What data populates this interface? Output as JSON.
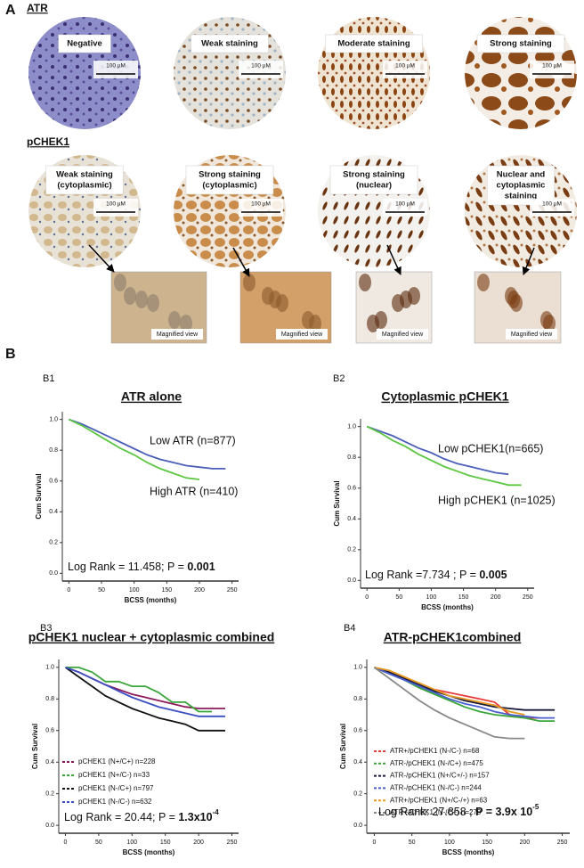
{
  "panel_a": {
    "label": "A",
    "rows": [
      {
        "title": "ATR",
        "images": [
          {
            "label": [
              "Negative"
            ],
            "scale": "100 µM"
          },
          {
            "label": [
              "Weak staining"
            ],
            "scale": "100 µM"
          },
          {
            "label": [
              "Moderate staining"
            ],
            "scale": "100 µM"
          },
          {
            "label": [
              "Strong staining"
            ],
            "scale": "100 µM"
          }
        ]
      },
      {
        "title": "pCHEK1",
        "images": [
          {
            "label": [
              "Weak staining",
              "(cytoplasmic)"
            ],
            "scale": "100 µM"
          },
          {
            "label": [
              "Strong staining",
              "(cytoplasmic)"
            ],
            "scale": "100 µM"
          },
          {
            "label": [
              "Strong staining",
              "(nuclear)"
            ],
            "scale": "100 µM"
          },
          {
            "label": [
              "Nuclear and",
              "cytoplasmic",
              "staining"
            ],
            "scale": "100 µM"
          }
        ]
      }
    ],
    "magnified": [
      "Magnified view",
      "Magnified view",
      "Magnified view",
      "Magnified view"
    ]
  },
  "panel_b": {
    "label": "B"
  },
  "chart_data": [
    {
      "type": "line",
      "panel": "B1",
      "title": "ATR alone",
      "x_label": "BCSS (months)",
      "y_label": "Cum Survival",
      "x": [
        0,
        20,
        40,
        60,
        80,
        100,
        120,
        140,
        160,
        180,
        200,
        220,
        240
      ],
      "legend": "inline",
      "series": [
        {
          "name": "Low ATR (n=877)",
          "color": "#4b5fb8",
          "values": [
            1.0,
            0.97,
            0.93,
            0.89,
            0.85,
            0.81,
            0.77,
            0.74,
            0.72,
            0.7,
            0.69,
            0.68,
            0.68
          ]
        },
        {
          "name": "High ATR (n=410)",
          "color": "#5cc641",
          "values": [
            1.0,
            0.96,
            0.91,
            0.86,
            0.81,
            0.77,
            0.72,
            0.68,
            0.65,
            0.62,
            0.61,
            null,
            null
          ]
        }
      ],
      "stat": {
        "text": "Log Rank = 11.458; P = ",
        "bold": "0.001"
      },
      "xlim": [
        -10,
        260
      ],
      "ylim": [
        -0.05,
        1.05
      ],
      "xticks": [
        0,
        50,
        100,
        150,
        200,
        250
      ],
      "yticks": [
        {
          "value": 0,
          "label": "0.0"
        },
        {
          "value": 0.2,
          "label": "0.2"
        },
        {
          "value": 0.4,
          "label": "0.4"
        },
        {
          "value": 0.6,
          "label": "0.6"
        },
        {
          "value": 0.8,
          "label": "0.8"
        },
        {
          "value": 1,
          "label": "1.0"
        }
      ]
    },
    {
      "type": "line",
      "panel": "B2",
      "title": "Cytoplasmic pCHEK1",
      "x_label": "BCSS (months)",
      "y_label": "Cum Survival",
      "x": [
        0,
        20,
        40,
        60,
        80,
        100,
        120,
        140,
        160,
        180,
        200,
        220,
        240
      ],
      "legend": "inline",
      "series": [
        {
          "name": "Low pCHEK1(n=665)",
          "color": "#4b5fb8",
          "values": [
            1.0,
            0.97,
            0.94,
            0.9,
            0.86,
            0.83,
            0.79,
            0.76,
            0.74,
            0.72,
            0.7,
            0.69,
            null
          ]
        },
        {
          "name": "High pCHEK1 (n=1025)",
          "color": "#5cc641",
          "values": [
            1.0,
            0.96,
            0.91,
            0.87,
            0.82,
            0.78,
            0.74,
            0.71,
            0.68,
            0.66,
            0.64,
            0.62,
            0.62
          ]
        }
      ],
      "stat": {
        "text": "Log Rank =7.734 ; P = ",
        "bold": "0.005"
      },
      "xlim": [
        -10,
        260
      ],
      "ylim": [
        -0.05,
        1.05
      ],
      "xticks": [
        0,
        50,
        100,
        150,
        200,
        250
      ],
      "yticks": [
        {
          "value": 0,
          "label": "0.0"
        },
        {
          "value": 0.2,
          "label": "0.2"
        },
        {
          "value": 0.4,
          "label": "0.4"
        },
        {
          "value": 0.6,
          "label": "0.6"
        },
        {
          "value": 0.8,
          "label": "0.8"
        },
        {
          "value": 1,
          "label": "1.0"
        }
      ]
    },
    {
      "type": "line",
      "panel": "B3",
      "title": "pCHEK1 nuclear + cytoplasmic combined",
      "x_label": "BCSS (months)",
      "y_label": "Cum Survival",
      "x": [
        0,
        20,
        40,
        60,
        80,
        100,
        120,
        140,
        160,
        180,
        200,
        220,
        240
      ],
      "legend": "lower left",
      "series": [
        {
          "name": "pCHEK1 (N+/C+) n=228",
          "color": "#8b1a5a",
          "values": [
            1.0,
            0.97,
            0.93,
            0.89,
            0.86,
            0.83,
            0.81,
            0.79,
            0.77,
            0.75,
            0.74,
            0.74,
            0.74
          ]
        },
        {
          "name": "pCHEK1 (N+/C-) n=33",
          "color": "#3aa63a",
          "values": [
            1.0,
            1.0,
            0.97,
            0.91,
            0.91,
            0.88,
            0.88,
            0.84,
            0.78,
            0.78,
            0.72,
            0.72,
            null
          ]
        },
        {
          "name": "pCHEK1 (N-/C+) n=797",
          "color": "#111111",
          "values": [
            1.0,
            0.94,
            0.88,
            0.82,
            0.78,
            0.74,
            0.71,
            0.68,
            0.66,
            0.64,
            0.6,
            0.6,
            0.6
          ]
        },
        {
          "name": "pCHEK1 (N-/C-) n=632",
          "color": "#3b4fc4",
          "values": [
            1.0,
            0.97,
            0.93,
            0.89,
            0.85,
            0.81,
            0.78,
            0.75,
            0.73,
            0.71,
            0.69,
            0.69,
            0.69
          ]
        }
      ],
      "stat": {
        "text": "Log Rank = 20.44; P = ",
        "bold": "1.3x10",
        "sup": "-4"
      },
      "xlim": [
        -10,
        260
      ],
      "ylim": [
        -0.05,
        1.05
      ],
      "xticks": [
        0,
        50,
        100,
        150,
        200,
        250
      ],
      "yticks": [
        {
          "value": 0,
          "label": "0.0"
        },
        {
          "value": 0.2,
          "label": "0.2"
        },
        {
          "value": 0.4,
          "label": "0.4"
        },
        {
          "value": 0.6,
          "label": "0.6"
        },
        {
          "value": 0.8,
          "label": "0.8"
        },
        {
          "value": 1,
          "label": "1.0"
        }
      ]
    },
    {
      "type": "line",
      "panel": "B4",
      "title": "ATR-pCHEK1combined",
      "x_label": "BCSS (months)",
      "y_label": "Cum Survival",
      "x": [
        0,
        20,
        40,
        60,
        80,
        100,
        120,
        140,
        160,
        180,
        200,
        220,
        240
      ],
      "legend": "lower left",
      "series": [
        {
          "name": "ATR+/pCHEK1 (N-/C-) n=68",
          "color": "#e83a3a",
          "values": [
            1.0,
            0.96,
            0.92,
            0.88,
            0.86,
            0.84,
            0.82,
            0.8,
            0.78,
            0.7,
            0.68,
            0.68,
            null
          ]
        },
        {
          "name": "ATR-/pCHEK1 (N-/C+) n=475",
          "color": "#3aa63a",
          "values": [
            1.0,
            0.96,
            0.92,
            0.87,
            0.83,
            0.79,
            0.75,
            0.72,
            0.7,
            0.69,
            0.68,
            0.66,
            0.66
          ]
        },
        {
          "name": "ATR-/pCHEK1 (N+/C+/-) n=157",
          "color": "#1a1a3a",
          "values": [
            1.0,
            0.97,
            0.93,
            0.89,
            0.85,
            0.82,
            0.79,
            0.77,
            0.75,
            0.74,
            0.73,
            0.73,
            0.73
          ]
        },
        {
          "name": "ATR-/pCHEK1 (N-/C-) n=244",
          "color": "#4a5fd0",
          "values": [
            1.0,
            0.96,
            0.92,
            0.88,
            0.84,
            0.8,
            0.77,
            0.75,
            0.72,
            0.7,
            0.69,
            0.68,
            0.68
          ]
        },
        {
          "name": "ATR+/pCHEK1 (N+/C-/+) n=63",
          "color": "#e89a20",
          "values": [
            1.0,
            0.98,
            0.94,
            0.9,
            0.86,
            0.82,
            0.8,
            0.78,
            0.76,
            0.72,
            0.7,
            null,
            null
          ]
        },
        {
          "name": "ATR+/CHEK1 (N-/C+) n=279",
          "color": "#888888",
          "values": [
            1.0,
            0.93,
            0.86,
            0.79,
            0.73,
            0.68,
            0.64,
            0.6,
            0.56,
            0.55,
            0.55,
            null,
            null
          ]
        }
      ],
      "stat": {
        "text": "Log Rank: 27.858 ; ",
        "bold": "P = 3.9x 10",
        "sup": "-5"
      },
      "xlim": [
        -10,
        260
      ],
      "ylim": [
        -0.05,
        1.05
      ],
      "xticks": [
        0,
        50,
        100,
        150,
        200,
        250
      ],
      "yticks": [
        {
          "value": 0,
          "label": "0.0"
        },
        {
          "value": 0.2,
          "label": "0.2"
        },
        {
          "value": 0.4,
          "label": "0.4"
        },
        {
          "value": 0.6,
          "label": "0.6"
        },
        {
          "value": 0.8,
          "label": "0.8"
        },
        {
          "value": 1,
          "label": "1.0"
        }
      ]
    }
  ]
}
